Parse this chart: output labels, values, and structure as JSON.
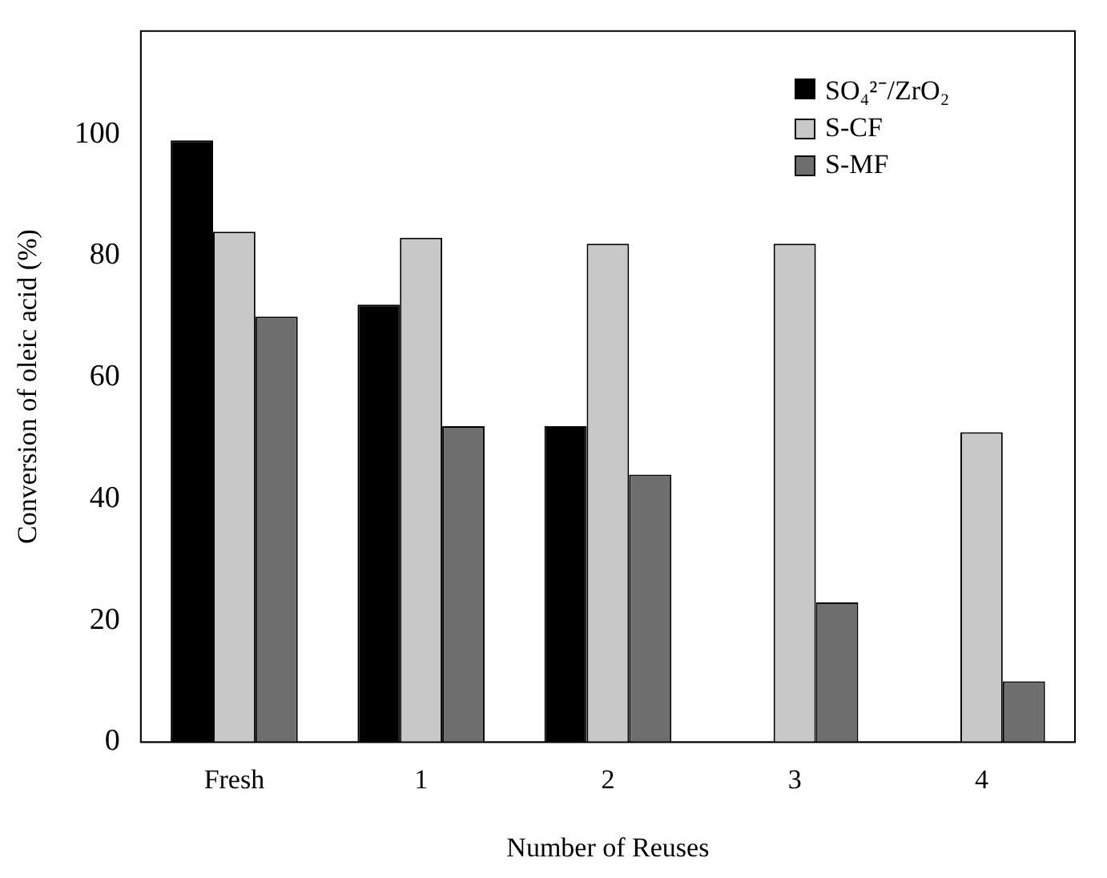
{
  "chart_data": {
    "type": "bar",
    "xlabel": "Number of Reuses",
    "ylabel": "Conversion of oleic acid (%)",
    "categories": [
      "Fresh",
      "1",
      "2",
      "3",
      "4"
    ],
    "series": [
      {
        "name": "SO₄²⁻/ZrO₂",
        "color": "#000000",
        "values": [
          99,
          72,
          52,
          0,
          0
        ]
      },
      {
        "name": "S-CF",
        "color": "#c8c8c8",
        "values": [
          84,
          83,
          82,
          82,
          51
        ]
      },
      {
        "name": "S-MF",
        "color": "#6e6e6e",
        "values": [
          70,
          52,
          44,
          23,
          10
        ]
      }
    ],
    "ylim": [
      0,
      117
    ],
    "yticks": [
      0,
      20,
      40,
      60,
      80,
      100
    ],
    "grid": false,
    "legend": "top right"
  }
}
